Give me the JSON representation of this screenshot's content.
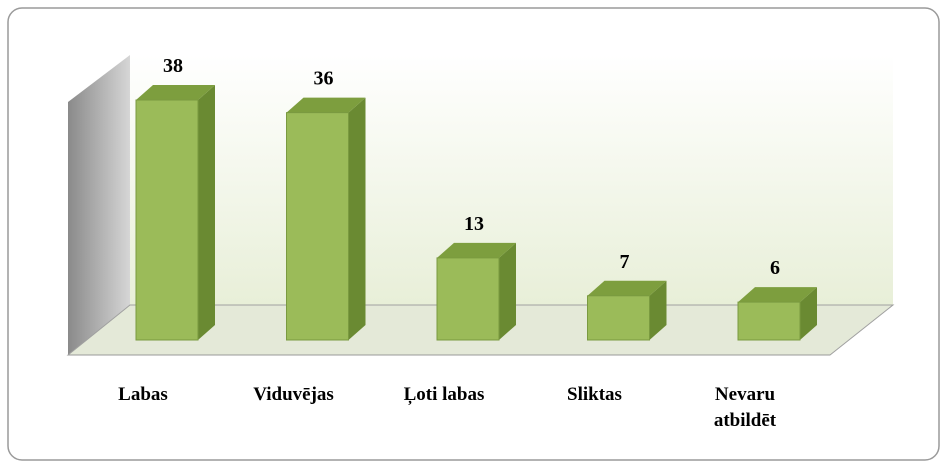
{
  "chart_data": {
    "type": "bar3d",
    "categories": [
      "Labas",
      "Viduvējas",
      "Ļoti labas",
      "Sliktas",
      "Nevaru atbildēt"
    ],
    "values": [
      38,
      36,
      13,
      7,
      6
    ],
    "color": "#9bbb59"
  }
}
